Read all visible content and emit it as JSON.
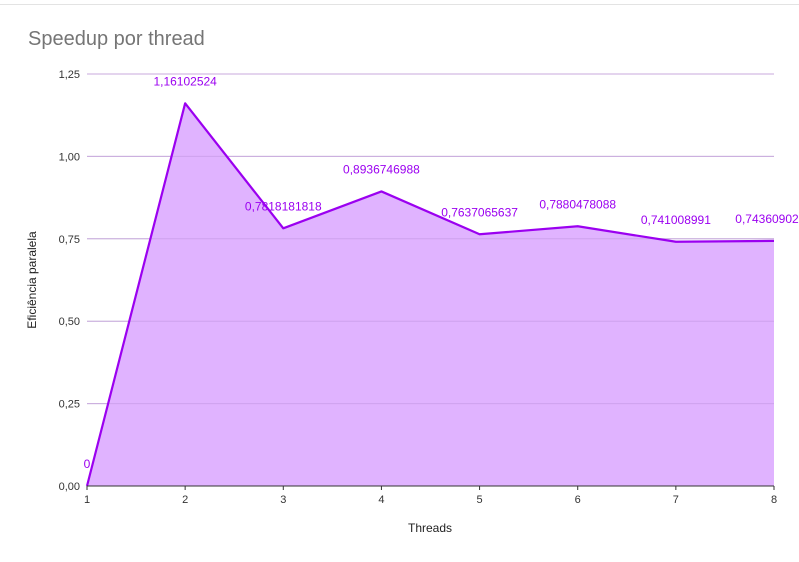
{
  "chart_data": {
    "type": "area",
    "title": "Speedup por thread",
    "xlabel": "Threads",
    "ylabel": "Eficiência paralela",
    "x": [
      1,
      2,
      3,
      4,
      5,
      6,
      7,
      8
    ],
    "x_tick_labels": [
      "1",
      "2",
      "3",
      "4",
      "5",
      "6",
      "7",
      "8"
    ],
    "series": [
      {
        "values": [
          0,
          1.16102524,
          0.7818181818,
          0.8936746988,
          0.7637065637,
          0.7880478088,
          0.741008991,
          0.74360902
        ],
        "data_labels": [
          "0",
          "1,16102524",
          "0,7818181818",
          "0,8936746988",
          "0,7637065637",
          "0,7880478088",
          "0,741008991",
          "0,74360902"
        ],
        "line_color": "#9b00f0",
        "fill_color": "#e0b3ff"
      }
    ],
    "y_ticks": [
      0,
      0.25,
      0.5,
      0.75,
      1.0,
      1.25
    ],
    "y_tick_labels": [
      "0,00",
      "0,25",
      "0,50",
      "0,75",
      "1,00",
      "1,25"
    ],
    "ylim": [
      0,
      1.25
    ],
    "xlim": [
      1,
      8
    ],
    "grid": true,
    "legend": "none",
    "label_color": "#9b00f0"
  }
}
